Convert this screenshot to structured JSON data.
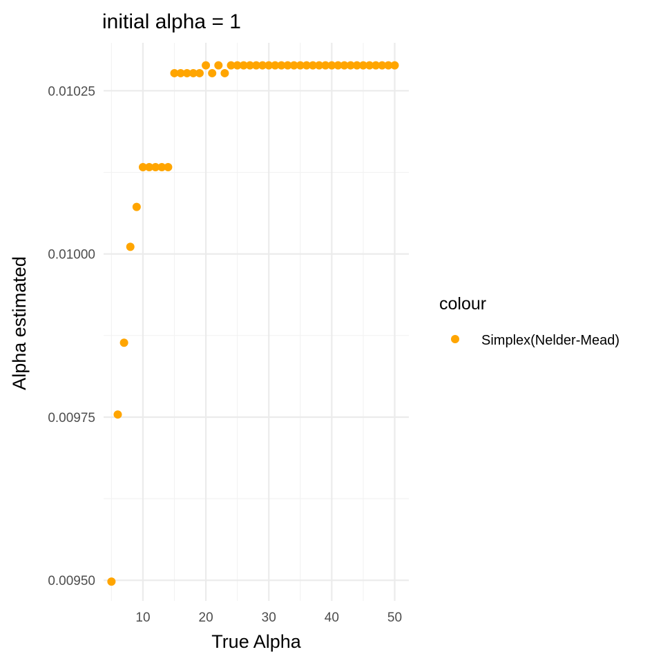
{
  "chart_data": {
    "type": "scatter",
    "title": "initial alpha = 1",
    "xlabel": "True Alpha",
    "ylabel": "Alpha estimated",
    "xlim": [
      3.75,
      52.25
    ],
    "ylim": [
      0.0094685,
      0.0103235
    ],
    "x_ticks": [
      10,
      20,
      30,
      40,
      50
    ],
    "x_tick_labels": [
      "10",
      "20",
      "30",
      "40",
      "50"
    ],
    "y_ticks": [
      0.0095,
      0.00975,
      0.01,
      0.01025
    ],
    "y_tick_labels": [
      "0.00950",
      "0.00975",
      "0.01000",
      "0.01025"
    ],
    "grid": true,
    "legend": {
      "title": "colour",
      "position": "right"
    },
    "series": [
      {
        "name": "Simplex(Nelder-Mead)",
        "color": "#FFA500",
        "x": [
          5,
          6,
          7,
          8,
          9,
          10,
          11,
          12,
          13,
          14,
          15,
          16,
          17,
          18,
          19,
          20,
          21,
          22,
          23,
          24,
          25,
          26,
          27,
          28,
          29,
          30,
          31,
          32,
          33,
          34,
          35,
          36,
          37,
          38,
          39,
          40,
          41,
          42,
          43,
          44,
          45,
          46,
          47,
          48,
          49,
          50
        ],
        "y": [
          0.009498,
          0.009754,
          0.009864,
          0.010011,
          0.010072,
          0.010133,
          0.010133,
          0.010133,
          0.010133,
          0.010133,
          0.010277,
          0.010277,
          0.010277,
          0.010277,
          0.010277,
          0.010289,
          0.010277,
          0.010289,
          0.010277,
          0.010289,
          0.010289,
          0.010289,
          0.010289,
          0.010289,
          0.010289,
          0.010289,
          0.010289,
          0.010289,
          0.010289,
          0.010289,
          0.010289,
          0.010289,
          0.010289,
          0.010289,
          0.010289,
          0.010289,
          0.010289,
          0.010289,
          0.010289,
          0.010289,
          0.010289,
          0.010289,
          0.010289,
          0.010289,
          0.010289,
          0.010289
        ]
      }
    ]
  }
}
